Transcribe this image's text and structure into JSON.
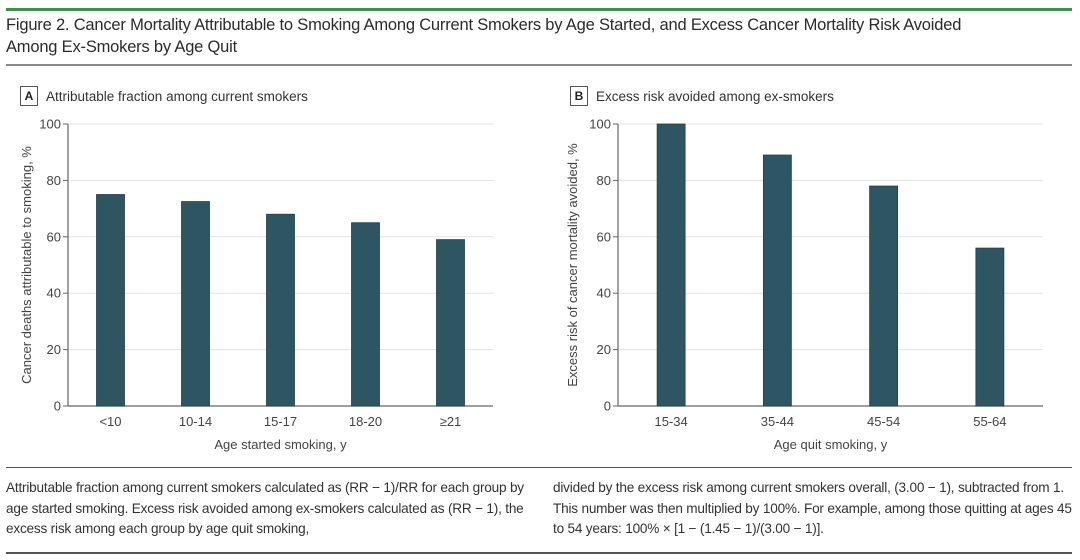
{
  "figure": {
    "title_line1": "Figure 2. Cancer Mortality Attributable to Smoking Among Current Smokers by Age Started, and Excess Cancer Mortality Risk Avoided",
    "title_line2": "Among Ex-Smokers by Age Quit",
    "accent_color": "#3f8f4d",
    "bar_color": "#2e5562"
  },
  "panels": [
    {
      "letter": "A",
      "title": "Attributable fraction among current smokers"
    },
    {
      "letter": "B",
      "title": "Excess risk avoided among ex-smokers"
    }
  ],
  "chart_data": [
    {
      "type": "bar",
      "title": "Attributable fraction among current smokers",
      "categories": [
        "<10",
        "10-14",
        "15-17",
        "18-20",
        "≥21"
      ],
      "values": [
        75,
        72.5,
        68,
        65,
        59
      ],
      "xlabel": "Age started smoking, y",
      "ylabel": "Cancer deaths attributable to smoking, %",
      "ylim": [
        0,
        100
      ],
      "yticks": [
        0,
        20,
        40,
        60,
        80,
        100
      ],
      "grid": true,
      "legend": "none"
    },
    {
      "type": "bar",
      "title": "Excess risk avoided among ex-smokers",
      "categories": [
        "15-34",
        "35-44",
        "45-54",
        "55-64"
      ],
      "values": [
        100,
        89,
        78,
        56
      ],
      "xlabel": "Age quit smoking, y",
      "ylabel": "Excess risk of cancer mortality avoided, %",
      "ylim": [
        0,
        100
      ],
      "yticks": [
        0,
        20,
        40,
        60,
        80,
        100
      ],
      "grid": true,
      "legend": "none"
    }
  ],
  "caption": {
    "left": "Attributable fraction among current smokers calculated as (RR − 1)/RR for each group by age started smoking. Excess risk avoided among ex-smokers calculated as (RR − 1), the excess risk among each group by age quit smoking,",
    "right": "divided by the excess risk among current smokers overall, (3.00 − 1), subtracted from 1. This number was then multiplied by 100%. For example, among those quitting at ages 45 to 54 years: 100% × [1 − (1.45 − 1)/(3.00 − 1)]."
  }
}
